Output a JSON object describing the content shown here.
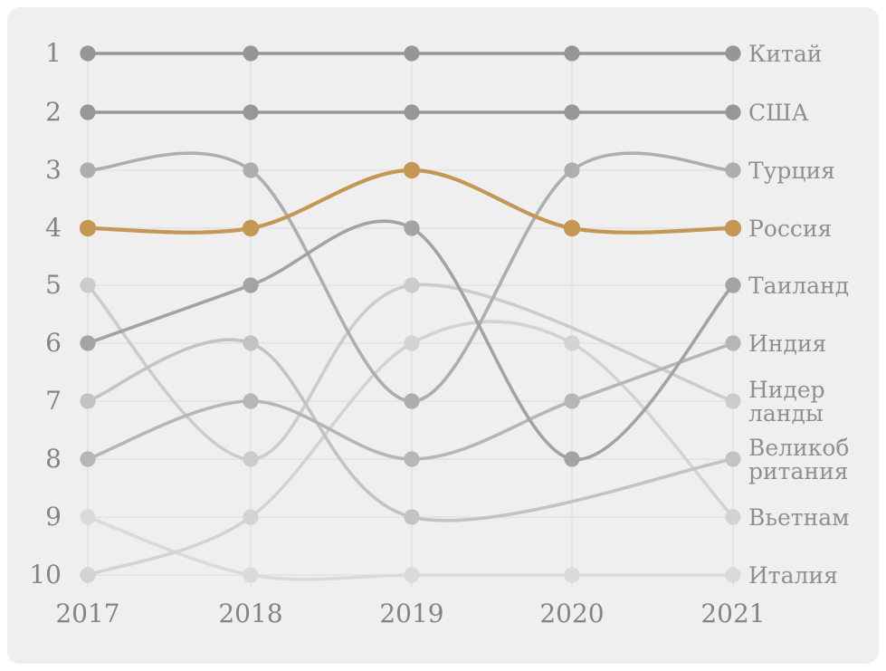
{
  "chart_data": {
    "type": "line",
    "subtype": "bump-rank-chart",
    "x": [
      "2017",
      "2018",
      "2019",
      "2020",
      "2021"
    ],
    "y_rank_ticks": [
      "1",
      "2",
      "3",
      "4",
      "5",
      "6",
      "7",
      "8",
      "9",
      "10"
    ],
    "ylabel": "",
    "xlabel": "",
    "legend_position": "right-of-last-point",
    "grid": true,
    "background_color": "#f0efef",
    "gridline_color": "#e2e1e1",
    "tick_color": "#848484",
    "label_color": "#8f8f8f",
    "highlight_color": "#c59755",
    "series": [
      {
        "name": "Китай",
        "label_lines": [
          "Китай"
        ],
        "color": "#969696",
        "highlight": false,
        "ranks": [
          1,
          1,
          1,
          1,
          1
        ]
      },
      {
        "name": "США",
        "label_lines": [
          "США"
        ],
        "color": "#979797",
        "highlight": false,
        "ranks": [
          2,
          2,
          2,
          2,
          2
        ]
      },
      {
        "name": "Турция",
        "label_lines": [
          "Турция"
        ],
        "color": "#aeaeae",
        "highlight": false,
        "ranks": [
          3,
          3,
          7,
          3,
          3
        ]
      },
      {
        "name": "Россия",
        "label_lines": [
          "Россия"
        ],
        "color": "#c59755",
        "highlight": true,
        "ranks": [
          4,
          4,
          3,
          4,
          4
        ]
      },
      {
        "name": "Таиланд",
        "label_lines": [
          "Таиланд"
        ],
        "color": "#a3a3a3",
        "highlight": false,
        "ranks": [
          6,
          5,
          4,
          8,
          5
        ]
      },
      {
        "name": "Индия",
        "label_lines": [
          "Индия"
        ],
        "color": "#b6b6b6",
        "highlight": false,
        "ranks": [
          8,
          7,
          8,
          7,
          6
        ]
      },
      {
        "name": "Нидерланды",
        "label_lines": [
          "Нидер",
          "ланды"
        ],
        "color": "#cccccc",
        "highlight": false,
        "ranks": [
          5,
          8,
          5,
          null,
          7
        ]
      },
      {
        "name": "Великобритания",
        "label_lines": [
          "Великоб",
          "ритания"
        ],
        "color": "#c3c3c3",
        "highlight": false,
        "ranks": [
          7,
          6,
          9,
          null,
          8
        ]
      },
      {
        "name": "Вьетнам",
        "label_lines": [
          "Вьетнам"
        ],
        "color": "#d3d3d3",
        "highlight": false,
        "ranks": [
          10,
          9,
          6,
          6,
          9
        ]
      },
      {
        "name": "Италия",
        "label_lines": [
          "Италия"
        ],
        "color": "#dadada",
        "highlight": false,
        "ranks": [
          9,
          10,
          10,
          10,
          10
        ]
      }
    ]
  }
}
